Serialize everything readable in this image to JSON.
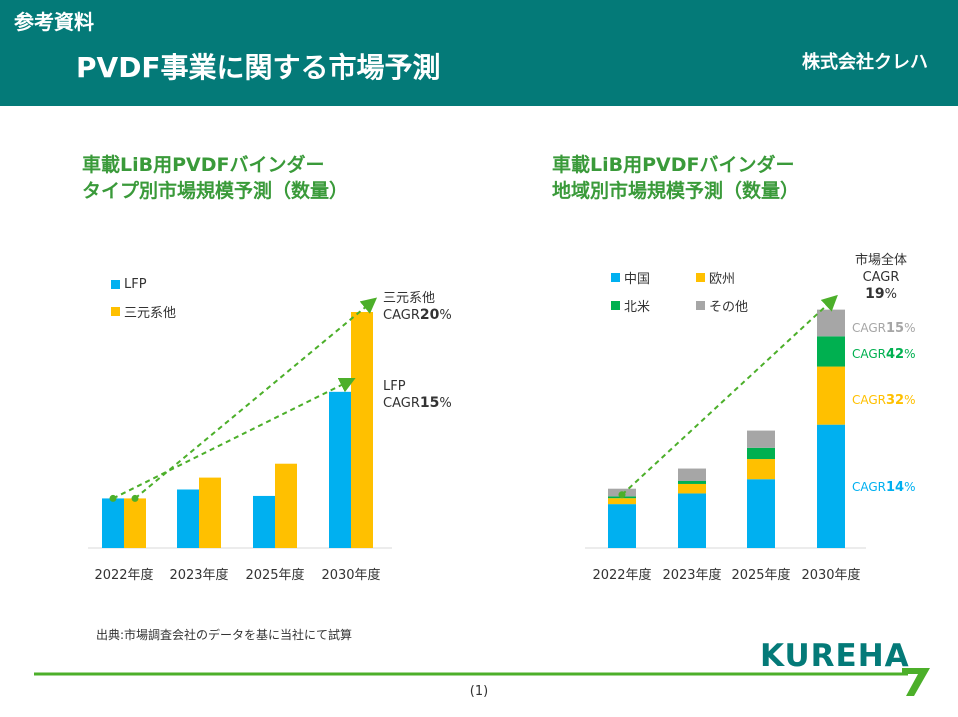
{
  "header": {
    "label": "参考資料",
    "title": "PVDF事業に関する市場予測",
    "company": "株式会社クレハ"
  },
  "colors": {
    "teal": "#047a78",
    "title_green": "#3a9a3a",
    "lfp_blue": "#00b0f0",
    "ncm_yellow": "#ffc000",
    "north_america_green": "#00b050",
    "other_gray": "#a6a6a6",
    "trend_green": "#4caf2a"
  },
  "chart_left": {
    "title_line1": "車載LiB用PVDFバインダー",
    "title_line2": "タイプ別市場規模予測（数量）",
    "legend": [
      {
        "name": "LFP",
        "color": "#00b0f0"
      },
      {
        "name": "三元系他",
        "color": "#ffc000"
      }
    ],
    "annotations": {
      "ncm_name": "三元系他",
      "ncm_cagr_prefix": "CAGR",
      "ncm_cagr_value": "20",
      "ncm_cagr_unit": "%",
      "lfp_name": "LFP",
      "lfp_cagr_prefix": "CAGR",
      "lfp_cagr_value": "15",
      "lfp_cagr_unit": "%"
    }
  },
  "chart_right": {
    "title_line1": "車載LiB用PVDFバインダー",
    "title_line2": "地域別市場規模予測（数量）",
    "legend": [
      {
        "name": "中国",
        "color": "#00b0f0"
      },
      {
        "name": "欧州",
        "color": "#ffc000"
      },
      {
        "name": "北米",
        "color": "#00b050"
      },
      {
        "name": "その他",
        "color": "#a6a6a6"
      }
    ],
    "total": {
      "line1": "市場全体",
      "line2": "CAGR",
      "value": "19",
      "unit": "%"
    },
    "series_cagr": [
      {
        "prefix": "CAGR",
        "value": "15",
        "unit": "%",
        "color": "#a6a6a6"
      },
      {
        "prefix": "CAGR",
        "value": "42",
        "unit": "%",
        "color": "#00b050"
      },
      {
        "prefix": "CAGR",
        "value": "32",
        "unit": "%",
        "color": "#ffc000"
      },
      {
        "prefix": "CAGR",
        "value": "14",
        "unit": "%",
        "color": "#00b0f0"
      }
    ]
  },
  "chart_data": [
    {
      "type": "bar",
      "title": "車載LiB用PVDFバインダー タイプ別市場規模予測（数量）",
      "categories": [
        "2022年度",
        "2023年度",
        "2025年度",
        "2030年度"
      ],
      "series": [
        {
          "name": "LFP",
          "values": [
            1.0,
            1.18,
            1.05,
            3.15
          ],
          "color": "#00b0f0"
        },
        {
          "name": "三元系他",
          "values": [
            1.0,
            1.42,
            1.7,
            4.76
          ],
          "color": "#ffc000"
        }
      ],
      "ylim": [
        0,
        5.0
      ],
      "grid": false,
      "legend": "top-left"
    },
    {
      "type": "bar",
      "stacked": true,
      "title": "車載LiB用PVDFバインダー 地域別市場規模予測（数量）",
      "categories": [
        "2022年度",
        "2023年度",
        "2025年度",
        "2030年度"
      ],
      "series": [
        {
          "name": "中国",
          "values": [
            0.74,
            0.92,
            1.16,
            2.08
          ],
          "color": "#00b0f0"
        },
        {
          "name": "欧州",
          "values": [
            0.1,
            0.16,
            0.34,
            0.98
          ],
          "color": "#ffc000"
        },
        {
          "name": "北米",
          "values": [
            0.03,
            0.05,
            0.19,
            0.51
          ],
          "color": "#00b050"
        },
        {
          "name": "その他",
          "values": [
            0.13,
            0.21,
            0.29,
            0.45
          ],
          "color": "#a6a6a6"
        }
      ],
      "ylim": [
        0,
        4.3
      ],
      "grid": false,
      "legend": "top-left"
    }
  ],
  "footer": {
    "source": "出典:市場調査会社のデータを基に当社にて試算",
    "logo": "KUREHA",
    "page": "(1)"
  }
}
